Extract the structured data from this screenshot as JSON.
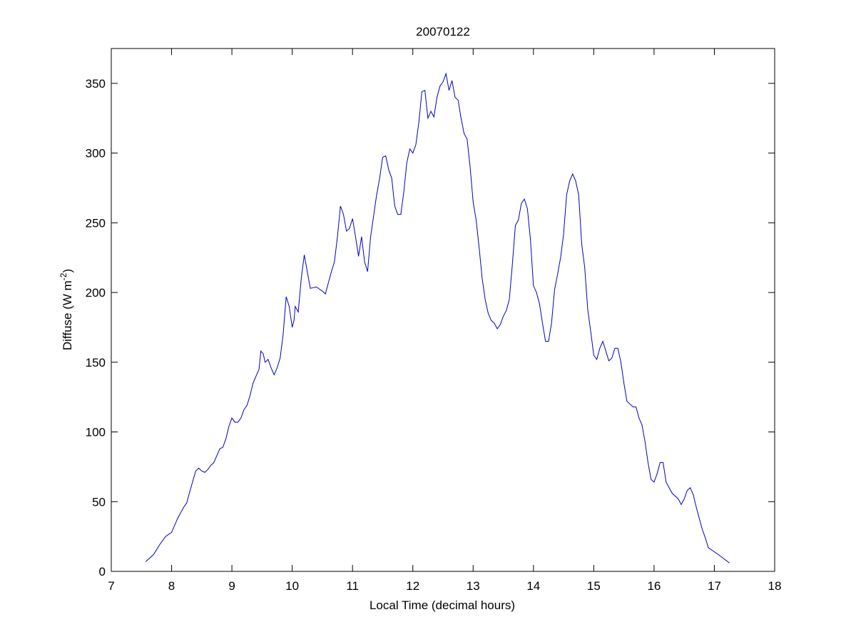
{
  "chart_data": {
    "type": "line",
    "title": "20070122",
    "xlabel": "Local Time (decimal hours)",
    "ylabel": [
      "Diffuse (W m",
      "-2",
      ")"
    ],
    "xlim": [
      7,
      18
    ],
    "xticks": [
      7,
      8,
      9,
      10,
      11,
      12,
      13,
      14,
      15,
      16,
      17,
      18
    ],
    "ylim": [
      0,
      375
    ],
    "yticks": [
      0,
      50,
      100,
      150,
      200,
      250,
      300,
      350
    ],
    "grid": false,
    "series": [
      {
        "color": "#0000c8",
        "x": [
          7.57,
          7.7,
          7.8,
          7.9,
          8.0,
          8.1,
          8.2,
          8.25,
          8.3,
          8.4,
          8.45,
          8.5,
          8.55,
          8.6,
          8.65,
          8.7,
          8.8,
          8.85,
          8.9,
          8.95,
          9.0,
          9.05,
          9.1,
          9.15,
          9.2,
          9.25,
          9.3,
          9.35,
          9.45,
          9.48,
          9.52,
          9.55,
          9.6,
          9.65,
          9.7,
          9.75,
          9.8,
          9.85,
          9.9,
          9.95,
          10.0,
          10.03,
          10.05,
          10.1,
          10.15,
          10.2,
          10.25,
          10.3,
          10.4,
          10.5,
          10.55,
          10.6,
          10.65,
          10.7,
          10.75,
          10.8,
          10.85,
          10.9,
          10.95,
          11.0,
          11.05,
          11.1,
          11.15,
          11.2,
          11.25,
          11.3,
          11.35,
          11.4,
          11.45,
          11.5,
          11.55,
          11.6,
          11.65,
          11.7,
          11.75,
          11.8,
          11.85,
          11.9,
          11.95,
          12.0,
          12.05,
          12.1,
          12.15,
          12.2,
          12.25,
          12.3,
          12.35,
          12.4,
          12.45,
          12.5,
          12.55,
          12.6,
          12.65,
          12.7,
          12.75,
          12.8,
          12.85,
          12.9,
          12.95,
          13.0,
          13.05,
          13.1,
          13.15,
          13.2,
          13.25,
          13.3,
          13.35,
          13.4,
          13.45,
          13.5,
          13.55,
          13.6,
          13.65,
          13.7,
          13.75,
          13.8,
          13.85,
          13.9,
          13.95,
          14.0,
          14.05,
          14.1,
          14.15,
          14.2,
          14.25,
          14.3,
          14.35,
          14.4,
          14.45,
          14.5,
          14.55,
          14.6,
          14.65,
          14.7,
          14.75,
          14.8,
          14.85,
          14.9,
          14.95,
          15.0,
          15.05,
          15.1,
          15.15,
          15.2,
          15.25,
          15.3,
          15.35,
          15.4,
          15.45,
          15.5,
          15.55,
          15.6,
          15.65,
          15.7,
          15.75,
          15.8,
          15.85,
          15.9,
          15.95,
          16.0,
          16.05,
          16.1,
          16.15,
          16.2,
          16.25,
          16.3,
          16.4,
          16.45,
          16.5,
          16.55,
          16.6,
          16.65,
          16.7,
          16.75,
          16.8,
          16.85,
          16.9,
          17.0,
          17.1,
          17.25
        ],
        "values": [
          7,
          12,
          19,
          25,
          28,
          38,
          46,
          49,
          57,
          72,
          74,
          72,
          71,
          73,
          76,
          78,
          88,
          89,
          95,
          104,
          110,
          107,
          107,
          110,
          116,
          119,
          126,
          135,
          145,
          158,
          156,
          150,
          152,
          146,
          141,
          146,
          153,
          170,
          197,
          190,
          175,
          180,
          190,
          186,
          210,
          227,
          215,
          203,
          204,
          201,
          199,
          207,
          215,
          222,
          240,
          262,
          256,
          244,
          246,
          253,
          240,
          226,
          240,
          222,
          215,
          240,
          255,
          270,
          282,
          297,
          298,
          288,
          282,
          262,
          256,
          256,
          272,
          293,
          303,
          300,
          306,
          322,
          344,
          345,
          325,
          330,
          326,
          340,
          348,
          351,
          357,
          345,
          352,
          340,
          338,
          325,
          314,
          310,
          290,
          265,
          252,
          232,
          210,
          195,
          185,
          180,
          178,
          174,
          177,
          183,
          187,
          195,
          220,
          248,
          252,
          264,
          267,
          260,
          238,
          205,
          200,
          192,
          178,
          165,
          165,
          178,
          202,
          213,
          225,
          242,
          270,
          280,
          285,
          280,
          270,
          235,
          218,
          188,
          172,
          155,
          152,
          160,
          165,
          158,
          151,
          153,
          160,
          160,
          150,
          135,
          122,
          120,
          118,
          118,
          110,
          105,
          93,
          78,
          66,
          64,
          70,
          78,
          78,
          64,
          60,
          56,
          52,
          48,
          52,
          58,
          60,
          55,
          46,
          38,
          30,
          24,
          17,
          14,
          11,
          6
        ]
      }
    ]
  }
}
